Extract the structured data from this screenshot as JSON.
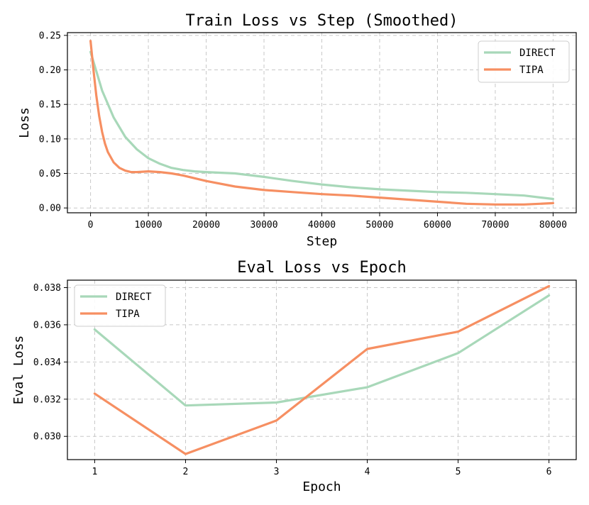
{
  "chart_data": [
    {
      "type": "line",
      "title": "Train Loss vs Step (Smoothed)",
      "xlabel": "Step",
      "ylabel": "Loss",
      "xlim": [
        -4000,
        84000
      ],
      "ylim": [
        -0.007,
        0.254
      ],
      "xticks": [
        0,
        10000,
        20000,
        30000,
        40000,
        50000,
        60000,
        70000,
        80000
      ],
      "xtick_labels": [
        "0",
        "10000",
        "20000",
        "30000",
        "40000",
        "50000",
        "60000",
        "70000",
        "80000"
      ],
      "yticks": [
        0.0,
        0.05,
        0.1,
        0.15,
        0.2,
        0.25
      ],
      "ytick_labels": [
        "0.00",
        "0.05",
        "0.10",
        "0.15",
        "0.20",
        "0.25"
      ],
      "grid": true,
      "legend_position": "top-right",
      "series": [
        {
          "name": "DIRECT",
          "color": "#a8d8b9",
          "x": [
            0,
            2000,
            4000,
            6000,
            8000,
            10000,
            12000,
            14000,
            16000,
            18000,
            20000,
            25000,
            30000,
            35000,
            40000,
            45000,
            50000,
            55000,
            60000,
            65000,
            70000,
            75000,
            78000,
            80000
          ],
          "y": [
            0.226,
            0.17,
            0.131,
            0.103,
            0.085,
            0.072,
            0.064,
            0.058,
            0.055,
            0.053,
            0.052,
            0.05,
            0.045,
            0.039,
            0.034,
            0.03,
            0.027,
            0.025,
            0.023,
            0.022,
            0.02,
            0.018,
            0.015,
            0.013
          ]
        },
        {
          "name": "TIPA",
          "color": "#f68f62",
          "x": [
            0,
            500,
            1000,
            1500,
            2000,
            2500,
            3000,
            4000,
            5000,
            6000,
            7000,
            8000,
            10000,
            12000,
            14000,
            16000,
            20000,
            25000,
            30000,
            35000,
            40000,
            45000,
            50000,
            55000,
            60000,
            65000,
            70000,
            75000,
            80000
          ],
          "y": [
            0.242,
            0.2,
            0.163,
            0.133,
            0.11,
            0.093,
            0.081,
            0.066,
            0.058,
            0.054,
            0.052,
            0.052,
            0.053,
            0.052,
            0.05,
            0.047,
            0.039,
            0.031,
            0.026,
            0.023,
            0.02,
            0.018,
            0.015,
            0.012,
            0.009,
            0.006,
            0.005,
            0.005,
            0.007
          ]
        }
      ]
    },
    {
      "type": "line",
      "title": "Eval Loss vs Epoch",
      "xlabel": "Epoch",
      "ylabel": "Eval Loss",
      "xlim": [
        0.7,
        6.3
      ],
      "ylim": [
        0.02875,
        0.0384
      ],
      "xticks": [
        1,
        2,
        3,
        4,
        5,
        6
      ],
      "xtick_labels": [
        "1",
        "2",
        "3",
        "4",
        "5",
        "6"
      ],
      "yticks": [
        0.03,
        0.032,
        0.034,
        0.036,
        0.038
      ],
      "ytick_labels": [
        "0.030",
        "0.032",
        "0.034",
        "0.036",
        "0.038"
      ],
      "grid": true,
      "legend_position": "top-left",
      "series": [
        {
          "name": "DIRECT",
          "color": "#a8d8b9",
          "x": [
            1,
            2,
            3,
            4,
            5,
            6
          ],
          "y": [
            0.03575,
            0.03166,
            0.03182,
            0.03264,
            0.03448,
            0.03758
          ]
        },
        {
          "name": "TIPA",
          "color": "#f68f62",
          "x": [
            1,
            2,
            3,
            4,
            5,
            6
          ],
          "y": [
            0.0323,
            0.02905,
            0.03085,
            0.0347,
            0.03563,
            0.03808
          ]
        }
      ]
    }
  ]
}
